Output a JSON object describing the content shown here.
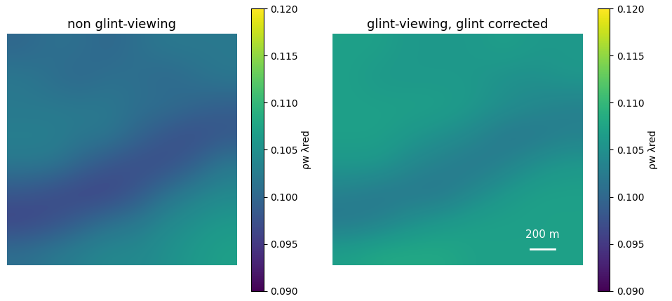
{
  "chart_data": [
    {
      "type": "heatmap",
      "title": "non glint-viewing",
      "tick_labels": false,
      "cells": [
        [
          0.1,
          0.101,
          0.101,
          0.1,
          0.101,
          0.102,
          0.102,
          0.102
        ],
        [
          0.102,
          0.101,
          0.1,
          0.101,
          0.101,
          0.1,
          0.101,
          0.102
        ],
        [
          0.102,
          0.102,
          0.102,
          0.102,
          0.101,
          0.101,
          0.1,
          0.099
        ],
        [
          0.103,
          0.103,
          0.102,
          0.102,
          0.1,
          0.098,
          0.097,
          0.098
        ],
        [
          0.102,
          0.102,
          0.1,
          0.098,
          0.097,
          0.097,
          0.099,
          0.102
        ],
        [
          0.098,
          0.097,
          0.096,
          0.096,
          0.098,
          0.101,
          0.103,
          0.104
        ],
        [
          0.096,
          0.097,
          0.099,
          0.101,
          0.102,
          0.104,
          0.105,
          0.106
        ],
        [
          0.101,
          0.102,
          0.103,
          0.104,
          0.104,
          0.105,
          0.106,
          0.107
        ]
      ],
      "colorbar": {
        "label": "ρw λred",
        "range": [
          0.09,
          0.12
        ],
        "ticks": [
          {
            "value": 0.09,
            "label": "0.090"
          },
          {
            "value": 0.095,
            "label": "0.095"
          },
          {
            "value": 0.1,
            "label": "0.100"
          },
          {
            "value": 0.105,
            "label": "0.105"
          },
          {
            "value": 0.11,
            "label": "0.110"
          },
          {
            "value": 0.115,
            "label": "0.115"
          },
          {
            "value": 0.12,
            "label": "0.120"
          }
        ]
      }
    },
    {
      "type": "heatmap",
      "title": "glint-viewing, glint corrected",
      "tick_labels": false,
      "annotations": [
        "200 m"
      ],
      "cells": [
        [
          0.107,
          0.107,
          0.106,
          0.106,
          0.106,
          0.107,
          0.106,
          0.106
        ],
        [
          0.107,
          0.106,
          0.106,
          0.106,
          0.106,
          0.105,
          0.105,
          0.106
        ],
        [
          0.107,
          0.107,
          0.107,
          0.107,
          0.106,
          0.105,
          0.104,
          0.103
        ],
        [
          0.107,
          0.107,
          0.106,
          0.105,
          0.104,
          0.102,
          0.102,
          0.103
        ],
        [
          0.106,
          0.106,
          0.104,
          0.103,
          0.102,
          0.103,
          0.105,
          0.106
        ],
        [
          0.103,
          0.102,
          0.102,
          0.102,
          0.104,
          0.106,
          0.107,
          0.107
        ],
        [
          0.102,
          0.103,
          0.105,
          0.106,
          0.107,
          0.107,
          0.107,
          0.107
        ],
        [
          0.107,
          0.108,
          0.108,
          0.108,
          0.107,
          0.107,
          0.107,
          0.107
        ]
      ],
      "colorbar": {
        "label": "ρw λred",
        "range": [
          0.09,
          0.12
        ],
        "ticks": [
          {
            "value": 0.09,
            "label": "0.090"
          },
          {
            "value": 0.095,
            "label": "0.095"
          },
          {
            "value": 0.1,
            "label": "0.100"
          },
          {
            "value": 0.105,
            "label": "0.105"
          },
          {
            "value": 0.11,
            "label": "0.110"
          },
          {
            "value": 0.115,
            "label": "0.115"
          },
          {
            "value": 0.12,
            "label": "0.120"
          }
        ]
      }
    }
  ]
}
